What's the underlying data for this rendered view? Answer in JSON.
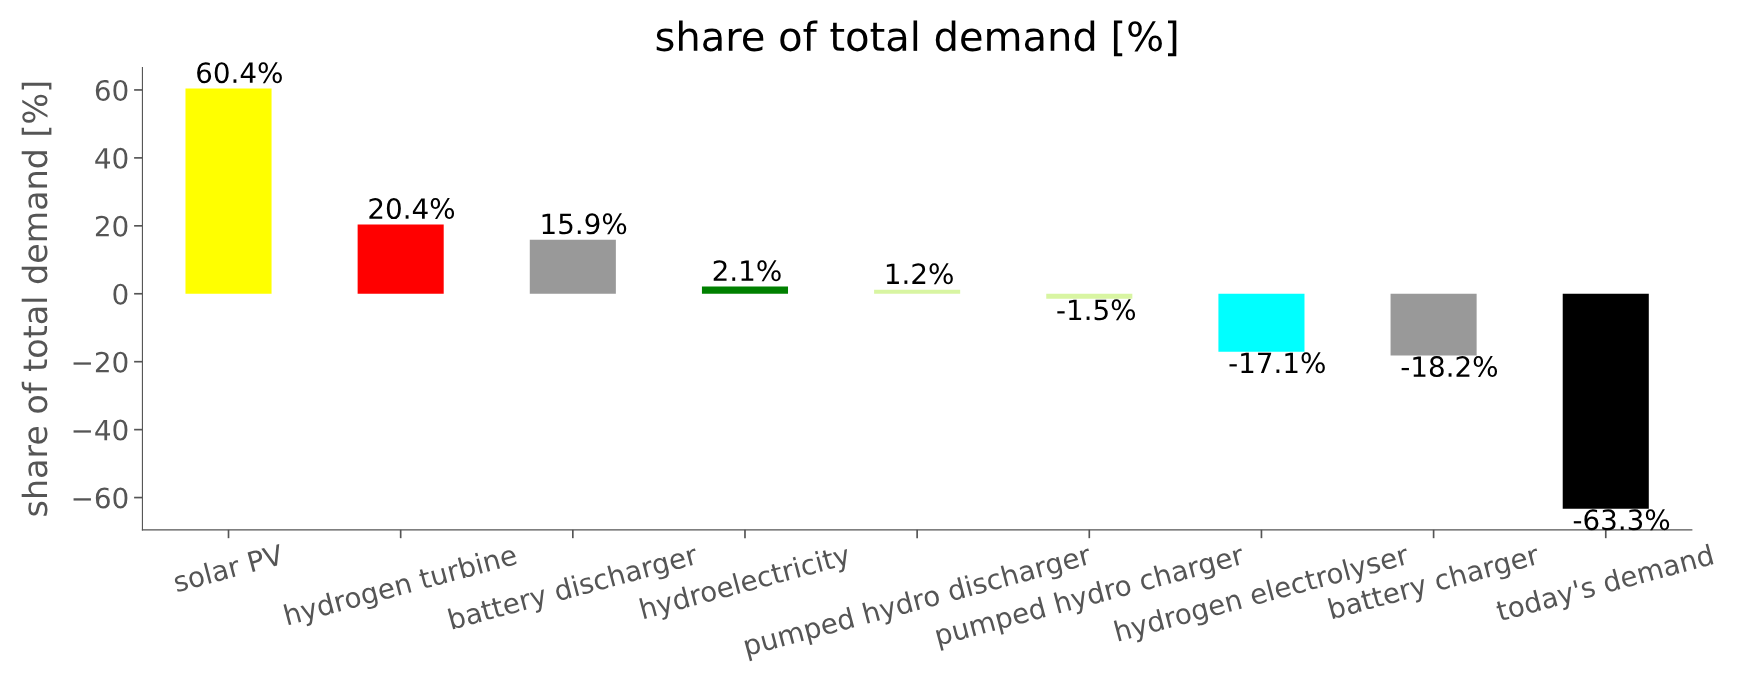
{
  "chart_data": {
    "type": "bar",
    "title": "share of total demand [%]",
    "ylabel": "share of total demand [%]",
    "categories": [
      "solar PV",
      "hydrogen turbine",
      "battery discharger",
      "hydroelectricity",
      "pumped hydro discharger",
      "pumped hydro charger",
      "hydrogen electrolyser",
      "battery charger",
      "today's demand"
    ],
    "values": [
      60.4,
      20.4,
      15.9,
      2.1,
      1.2,
      -1.5,
      -17.1,
      -18.2,
      -63.3
    ],
    "colors": [
      "#ffff00",
      "#ff0000",
      "#999999",
      "#008000",
      "#d8f5a2",
      "#d8f5a2",
      "#00ffff",
      "#999999",
      "#000000"
    ],
    "value_labels": [
      "60.4%",
      "20.4%",
      "15.9%",
      "2.1%",
      "1.2%",
      "-1.5%",
      "-17.1%",
      "-18.2%",
      "-63.3%"
    ],
    "ylim": [
      -69.5,
      66.6
    ],
    "yticks": [
      {
        "value": -60,
        "label": "−60"
      },
      {
        "value": -40,
        "label": "−40"
      },
      {
        "value": -20,
        "label": "−20"
      },
      0,
      20,
      40,
      60
    ],
    "grid": false
  }
}
